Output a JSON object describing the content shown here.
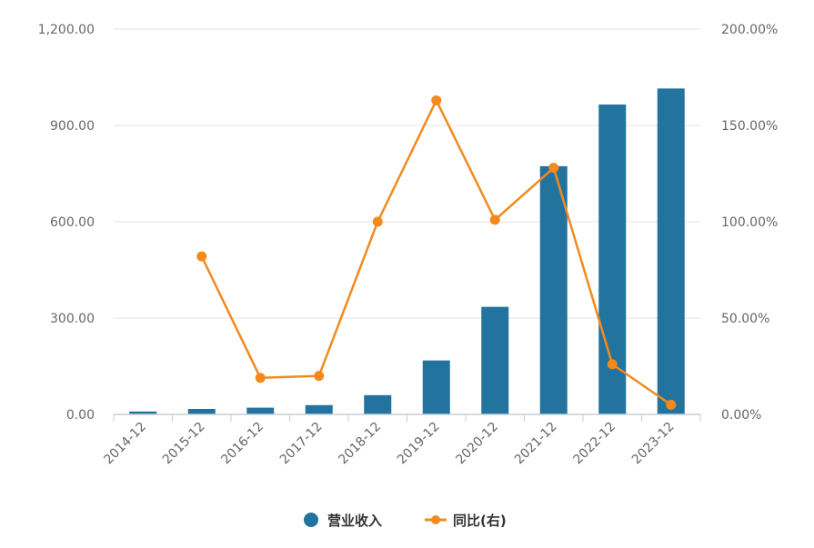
{
  "chart_data": {
    "type": "bar+line",
    "categories": [
      "2014-12",
      "2015-12",
      "2016-12",
      "2017-12",
      "2018-12",
      "2019-12",
      "2020-12",
      "2021-12",
      "2022-12",
      "2023-12"
    ],
    "series": [
      {
        "name": "营业收入",
        "type": "bar",
        "axis": "left",
        "color": "#22749f",
        "values": [
          9,
          17,
          21,
          29,
          60,
          168,
          335,
          773,
          965,
          1015
        ]
      },
      {
        "name": "同比(右)",
        "type": "line",
        "axis": "right",
        "color": "#f28a1e",
        "values": [
          null,
          82.0,
          19.0,
          20.0,
          100.0,
          163.0,
          101.0,
          128.0,
          26.0,
          5.0
        ]
      }
    ],
    "y_left": {
      "ylim": [
        0,
        1200
      ],
      "ticks": [
        "0.00",
        "300.00",
        "600.00",
        "900.00",
        "1,200.00"
      ],
      "tick_values": [
        0,
        300,
        600,
        900,
        1200
      ]
    },
    "y_right": {
      "ylim": [
        0,
        200
      ],
      "ticks": [
        "0.00%",
        "50.00%",
        "100.00%",
        "150.00%",
        "200.00%"
      ],
      "tick_values": [
        0,
        50,
        100,
        150,
        200
      ]
    },
    "grid": true,
    "legend_position": "bottom-center"
  }
}
